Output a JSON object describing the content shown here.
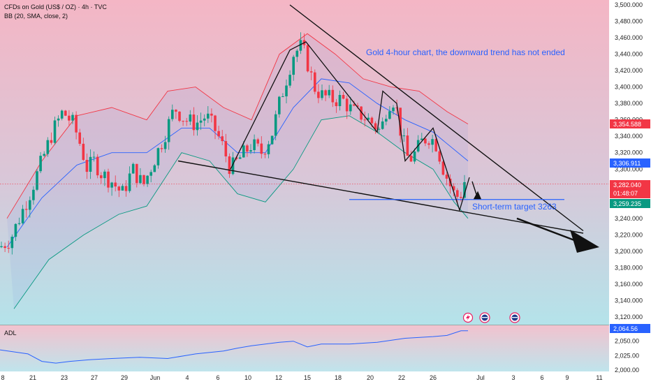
{
  "header": {
    "symbol_line": "CFDs on Gold (US$ / OZ) · 4h · TVC",
    "indicator_line": "BB (20, SMA, close, 2)"
  },
  "annotation": {
    "main_note": "Gold 4-hour chart, the downward trend has not ended",
    "target_note": "Short-term target 3263"
  },
  "lower_pane": {
    "label": "ADL"
  },
  "price_tags": {
    "upper_band": "3,354.588",
    "basis": "3,306.911",
    "last_price": "3,282.040",
    "countdown": "01:48:07",
    "lower_band": "3,259.235",
    "adl_value": "2,064.56"
  },
  "colors": {
    "bg_top": "#f4b8c6",
    "bg_bottom": "#b8e4ea",
    "up_candle": "#089981",
    "down_candle": "#f23645",
    "upper_band": "#f23645",
    "basis": "#2962ff",
    "lower_band": "#089981",
    "annotation_text": "#2962ff",
    "adl_line": "#2962ff"
  },
  "chart_data": {
    "type": "candlestick",
    "timeframe": "4h",
    "ylim": [
      3100,
      3500
    ],
    "y_ticks": [
      "3,500.000",
      "3,480.000",
      "3,460.000",
      "3,440.000",
      "3,420.000",
      "3,400.000",
      "3,380.000",
      "3,360.000",
      "3,340.000",
      "3,320.000",
      "3,300.000",
      "3,280.000",
      "3,260.000",
      "3,240.000",
      "3,220.000",
      "3,200.000",
      "3,180.000",
      "3,160.000",
      "3,140.000",
      "3,120.000"
    ],
    "x_ticks": [
      "8",
      "21",
      "23",
      "27",
      "29",
      "Jun",
      "4",
      "6",
      "10",
      "12",
      "15",
      "18",
      "20",
      "22",
      "26",
      "Jul",
      "3",
      "6",
      "9",
      "11"
    ],
    "approx_close_path": [
      [
        0,
        3205
      ],
      [
        15,
        3215
      ],
      [
        30,
        3245
      ],
      [
        45,
        3275
      ],
      [
        60,
        3310
      ],
      [
        75,
        3345
      ],
      [
        90,
        3370
      ],
      [
        105,
        3355
      ],
      [
        115,
        3330
      ],
      [
        125,
        3300
      ],
      [
        135,
        3310
      ],
      [
        145,
        3295
      ],
      [
        160,
        3285
      ],
      [
        175,
        3270
      ],
      [
        190,
        3300
      ],
      [
        205,
        3280
      ],
      [
        220,
        3310
      ],
      [
        235,
        3340
      ],
      [
        250,
        3375
      ],
      [
        265,
        3360
      ],
      [
        280,
        3355
      ],
      [
        295,
        3365
      ],
      [
        310,
        3345
      ],
      [
        320,
        3325
      ],
      [
        330,
        3300
      ],
      [
        340,
        3310
      ],
      [
        350,
        3320
      ],
      [
        360,
        3330
      ],
      [
        375,
        3320
      ],
      [
        390,
        3345
      ],
      [
        400,
        3380
      ],
      [
        410,
        3410
      ],
      [
        420,
        3440
      ],
      [
        432,
        3450
      ],
      [
        440,
        3430
      ],
      [
        450,
        3400
      ],
      [
        460,
        3390
      ],
      [
        475,
        3385
      ],
      [
        490,
        3385
      ],
      [
        505,
        3370
      ],
      [
        520,
        3365
      ],
      [
        535,
        3355
      ],
      [
        545,
        3345
      ],
      [
        555,
        3380
      ],
      [
        565,
        3385
      ],
      [
        575,
        3340
      ],
      [
        585,
        3310
      ],
      [
        595,
        3320
      ],
      [
        605,
        3335
      ],
      [
        615,
        3340
      ],
      [
        625,
        3330
      ],
      [
        635,
        3300
      ],
      [
        642,
        3285
      ],
      [
        650,
        3270
      ],
      [
        658,
        3265
      ],
      [
        665,
        3285
      ],
      [
        670,
        3282
      ]
    ],
    "bollinger": {
      "upper": [
        [
          10,
          3240
        ],
        [
          60,
          3310
        ],
        [
          110,
          3365
        ],
        [
          160,
          3375
        ],
        [
          210,
          3360
        ],
        [
          240,
          3395
        ],
        [
          280,
          3400
        ],
        [
          320,
          3375
        ],
        [
          360,
          3360
        ],
        [
          400,
          3440
        ],
        [
          440,
          3465
        ],
        [
          480,
          3440
        ],
        [
          520,
          3410
        ],
        [
          560,
          3400
        ],
        [
          600,
          3395
        ],
        [
          640,
          3370
        ],
        [
          670,
          3355
        ]
      ],
      "basis": [
        [
          10,
          3205
        ],
        [
          60,
          3265
        ],
        [
          110,
          3305
        ],
        [
          160,
          3320
        ],
        [
          210,
          3320
        ],
        [
          260,
          3350
        ],
        [
          300,
          3350
        ],
        [
          340,
          3320
        ],
        [
          380,
          3320
        ],
        [
          420,
          3375
        ],
        [
          460,
          3410
        ],
        [
          500,
          3405
        ],
        [
          540,
          3380
        ],
        [
          580,
          3360
        ],
        [
          620,
          3345
        ],
        [
          670,
          3310
        ]
      ],
      "lower": [
        [
          20,
          3130
        ],
        [
          70,
          3190
        ],
        [
          120,
          3220
        ],
        [
          170,
          3245
        ],
        [
          210,
          3255
        ],
        [
          260,
          3320
        ],
        [
          300,
          3310
        ],
        [
          340,
          3270
        ],
        [
          380,
          3260
        ],
        [
          420,
          3300
        ],
        [
          460,
          3360
        ],
        [
          500,
          3365
        ],
        [
          540,
          3345
        ],
        [
          580,
          3320
        ],
        [
          620,
          3300
        ],
        [
          650,
          3260
        ],
        [
          670,
          3240
        ]
      ]
    },
    "trendlines": [
      {
        "from": [
          415,
          3500
        ],
        "to": [
          835,
          3225
        ]
      },
      {
        "from": [
          255,
          3310
        ],
        "to": [
          835,
          3222
        ]
      }
    ],
    "target_line": {
      "from": [
        500,
        3263
      ],
      "to": [
        808,
        3263
      ]
    },
    "adl": {
      "ylim": [
        2000,
        2075
      ],
      "ticks": [
        "2,050.00",
        "2,025.00",
        "2,000.00"
      ],
      "points": [
        [
          0,
          2035
        ],
        [
          40,
          2028
        ],
        [
          60,
          2015
        ],
        [
          80,
          2012
        ],
        [
          100,
          2015
        ],
        [
          130,
          2018
        ],
        [
          160,
          2020
        ],
        [
          200,
          2022
        ],
        [
          240,
          2020
        ],
        [
          280,
          2028
        ],
        [
          320,
          2033
        ],
        [
          340,
          2038
        ],
        [
          360,
          2042
        ],
        [
          380,
          2045
        ],
        [
          400,
          2048
        ],
        [
          420,
          2050
        ],
        [
          440,
          2040
        ],
        [
          460,
          2045
        ],
        [
          500,
          2045
        ],
        [
          540,
          2048
        ],
        [
          580,
          2055
        ],
        [
          620,
          2058
        ],
        [
          640,
          2060
        ],
        [
          660,
          2068
        ],
        [
          670,
          2068
        ]
      ]
    }
  }
}
